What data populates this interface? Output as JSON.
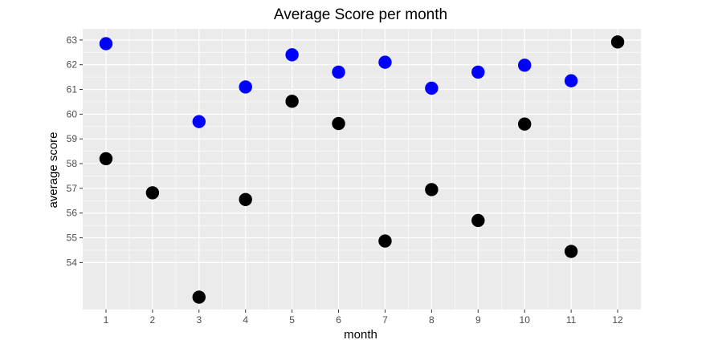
{
  "chart_data": {
    "type": "scatter",
    "title": "Average Score per month",
    "xlabel": "month",
    "ylabel": "average score",
    "x_ticks": [
      1,
      2,
      3,
      4,
      5,
      6,
      7,
      8,
      9,
      10,
      11,
      12
    ],
    "y_ticks": [
      54,
      55,
      56,
      57,
      58,
      59,
      60,
      61,
      62,
      63
    ],
    "xlim": [
      0.5,
      12.5
    ],
    "ylim": [
      52.1,
      63.45
    ],
    "grid": true,
    "legend": "none",
    "panel_background": "#EBEBEB",
    "grid_color": "#FFFFFF",
    "series": [
      {
        "color": "#0000FF",
        "points": [
          {
            "x": 1,
            "y": 62.85
          },
          {
            "x": 3,
            "y": 59.7
          },
          {
            "x": 4,
            "y": 61.1
          },
          {
            "x": 5,
            "y": 62.4
          },
          {
            "x": 6,
            "y": 61.7
          },
          {
            "x": 7,
            "y": 62.1
          },
          {
            "x": 8,
            "y": 61.05
          },
          {
            "x": 9,
            "y": 61.7
          },
          {
            "x": 10,
            "y": 61.98
          },
          {
            "x": 11,
            "y": 61.35
          }
        ]
      },
      {
        "color": "#000000",
        "points": [
          {
            "x": 1,
            "y": 58.2
          },
          {
            "x": 2,
            "y": 56.82
          },
          {
            "x": 3,
            "y": 52.6
          },
          {
            "x": 4,
            "y": 56.55
          },
          {
            "x": 5,
            "y": 60.52
          },
          {
            "x": 6,
            "y": 59.62
          },
          {
            "x": 7,
            "y": 54.87
          },
          {
            "x": 8,
            "y": 56.95
          },
          {
            "x": 9,
            "y": 55.7
          },
          {
            "x": 10,
            "y": 59.6
          },
          {
            "x": 11,
            "y": 54.45
          },
          {
            "x": 12,
            "y": 62.92
          }
        ]
      }
    ]
  }
}
